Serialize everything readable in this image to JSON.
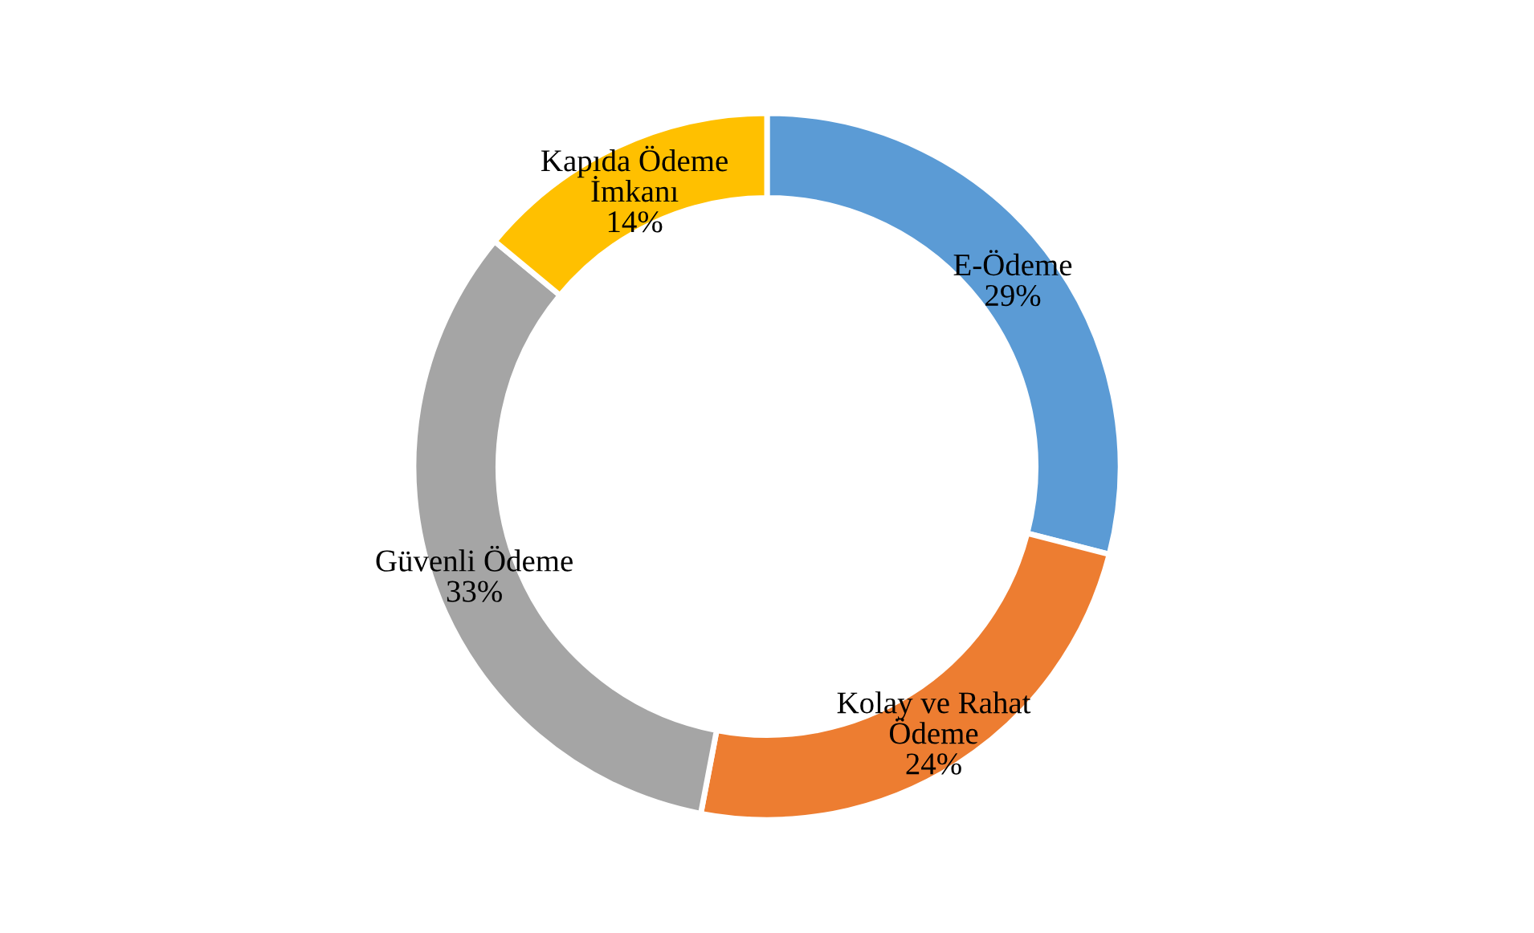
{
  "chart_data": {
    "type": "donut",
    "categories": [
      "E-Ödeme",
      "Kolay ve Rahat\nÖdeme",
      "Güvenli Ödeme",
      "Kapıda Ödeme\nİmkanı"
    ],
    "values": [
      29,
      24,
      33,
      14
    ],
    "colors": [
      "#5b9bd5",
      "#ed7d31",
      "#a5a5a5",
      "#ffc000"
    ],
    "value_labels": [
      "29%",
      "24%",
      "33%",
      "14%"
    ],
    "legend": false
  }
}
